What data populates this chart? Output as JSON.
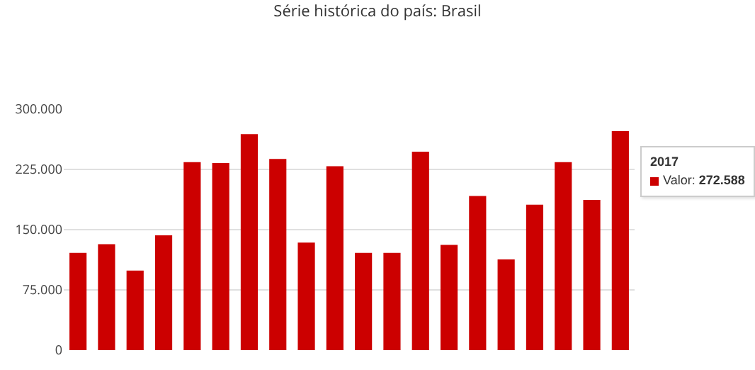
{
  "chart_data": {
    "type": "bar",
    "title": "Série histórica do país: Brasil",
    "categories": [
      null,
      null,
      null,
      null,
      null,
      null,
      null,
      null,
      null,
      null,
      null,
      null,
      null,
      null,
      null,
      null,
      null,
      null,
      null,
      null
    ],
    "values": [
      121000,
      132000,
      99000,
      143000,
      234000,
      233000,
      269000,
      238000,
      134000,
      229000,
      121000,
      121000,
      247000,
      131000,
      192000,
      113000,
      181000,
      234000,
      187000,
      272588
    ],
    "color": "#cc0000",
    "ylim": [
      0,
      300000
    ],
    "yticks": [
      0,
      {
        "value": 75000,
        "label": "75.000"
      },
      {
        "value": 150000,
        "label": "150.000"
      },
      {
        "value": 225000,
        "label": "225.000"
      },
      {
        "value": 300000,
        "label": "300.000"
      }
    ],
    "grid": "y",
    "tick_labels": "y",
    "annotations": [
      "2017\nValor: 272.588"
    ]
  }
}
